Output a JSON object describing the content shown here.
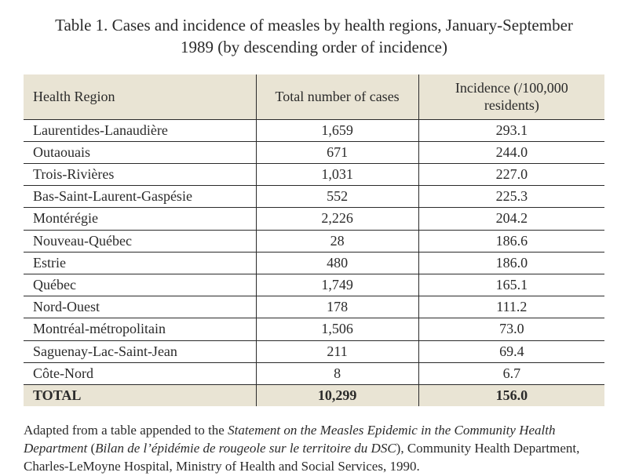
{
  "title": "Table 1. Cases and incidence of measles by health regions, January-September 1989 (by descending order of incidence)",
  "columns": {
    "region": "Health Region",
    "cases": "Total number of cases",
    "incidence": "Incidence (/100,000 residents)"
  },
  "rows": [
    {
      "region": "Laurentides-Lanaudière",
      "cases": "1,659",
      "incidence": "293.1"
    },
    {
      "region": "Outaouais",
      "cases": "671",
      "incidence": "244.0"
    },
    {
      "region": "Trois-Rivières",
      "cases": "1,031",
      "incidence": "227.0"
    },
    {
      "region": "Bas-Saint-Laurent-Gaspésie",
      "cases": "552",
      "incidence": "225.3"
    },
    {
      "region": "Montérégie",
      "cases": "2,226",
      "incidence": "204.2"
    },
    {
      "region": "Nouveau-Québec",
      "cases": "28",
      "incidence": "186.6"
    },
    {
      "region": "Estrie",
      "cases": "480",
      "incidence": "186.0"
    },
    {
      "region": "Québec",
      "cases": "1,749",
      "incidence": "165.1"
    },
    {
      "region": "Nord-Ouest",
      "cases": "178",
      "incidence": "111.2"
    },
    {
      "region": "Montréal-métropolitain",
      "cases": "1,506",
      "incidence": "73.0"
    },
    {
      "region": "Saguenay-Lac-Saint-Jean",
      "cases": "211",
      "incidence": "69.4"
    },
    {
      "region": "Côte-Nord",
      "cases": "8",
      "incidence": "6.7"
    }
  ],
  "total": {
    "region": "TOTAL",
    "cases": "10,299",
    "incidence": "156.0"
  },
  "footnote": {
    "pre": "Adapted from a table appended to the ",
    "title_en": "Statement on the Measles Epidemic in the Community Health Department",
    "open": " (",
    "title_fr": "Bilan de l’épidémie de rougeole sur le territoire du DSC",
    "close": ")",
    "post": ", Community Health Department, Charles-LeMoyne Hospital, Ministry of Health and Social Services, 1990."
  },
  "style": {
    "header_bg": "#e9e4d4",
    "border_color": "#2a2a2a",
    "col_widths": [
      "40%",
      "28%",
      "32%"
    ]
  }
}
